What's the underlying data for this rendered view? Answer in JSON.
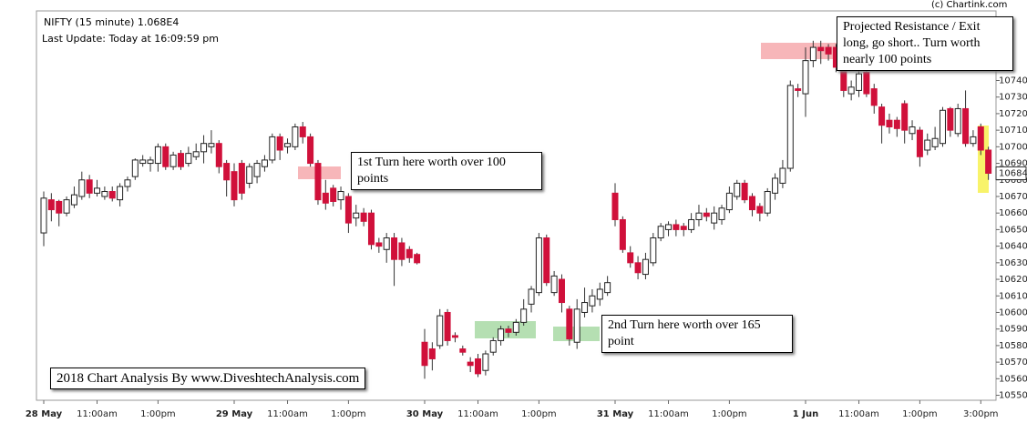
{
  "chart_data": {
    "type": "candlestick",
    "title": "NIFTY (15 minute) 1.068E4",
    "subtitle": "Last Update: Today at 16:09:59 pm",
    "credit": "(c) Chartink.com",
    "watermark": "2018 Chart Analysis By www.DiveshtechAnalysis.com",
    "annotations": [
      "1st Turn here worth over 100 points",
      "2nd Turn here worth over 165 point",
      "Projected Resistance / Exit long, go short.. Turn worth nearly 100 points"
    ],
    "up_color": "#ffffff",
    "down_color": "#d0103a",
    "open": [
      10648,
      10668,
      10667,
      10660,
      10665,
      10670,
      10680,
      10672,
      10670,
      10673,
      10668,
      10676,
      10682,
      10690,
      10690,
      10690,
      10700,
      10688,
      10696,
      10690,
      10694,
      10697,
      10700,
      10702,
      10690,
      10685,
      10690,
      10678,
      10682,
      10688,
      10692,
      10706,
      10700,
      10700,
      10712,
      10706,
      10690,
      10672,
      10675,
      10668,
      10670,
      10657,
      10660,
      10660,
      10642,
      10638,
      10645,
      10642,
      10638,
      10635,
      10582,
      10578,
      10580,
      10600,
      10586,
      10578,
      10570,
      10572,
      10565,
      10576,
      10583,
      10590,
      10588,
      10594,
      10605,
      10612,
      10645,
      10612,
      10620,
      10602,
      10582,
      10600,
      10604,
      10608,
      10612,
      10672,
      10656,
      10636,
      10630,
      10623,
      10630,
      10645,
      10650,
      10653,
      10652,
      10650,
      10656,
      10660,
      10654,
      10656,
      10662,
      10670,
      10678,
      10670,
      10664,
      10660,
      10672,
      10678,
      10687,
      10735,
      10732,
      10752,
      10760,
      10760,
      10760,
      10748,
      10732,
      10734,
      10745,
      10735,
      10724,
      10716,
      10716,
      10726,
      10708,
      10710,
      10698,
      10700,
      10702,
      10723,
      10708,
      10723,
      10702,
      10712,
      10698
    ],
    "high": [
      10673,
      10672,
      10668,
      10670,
      10676,
      10685,
      10683,
      10680,
      10676,
      10676,
      10678,
      10682,
      10693,
      10695,
      10694,
      10702,
      10702,
      10697,
      10698,
      10700,
      10702,
      10707,
      10710,
      10704,
      10692,
      10690,
      10692,
      10690,
      10692,
      10695,
      10708,
      10708,
      10705,
      10714,
      10715,
      10708,
      10692,
      10680,
      10677,
      10676,
      10672,
      10665,
      10663,
      10662,
      10645,
      10648,
      10648,
      10645,
      10640,
      10636,
      10590,
      10582,
      10602,
      10602,
      10588,
      10580,
      10573,
      10575,
      10577,
      10585,
      10592,
      10592,
      10596,
      10608,
      10616,
      10648,
      10647,
      10625,
      10623,
      10604,
      10608,
      10615,
      10614,
      10618,
      10622,
      10678,
      10658,
      10640,
      10634,
      10636,
      10648,
      10654,
      10655,
      10656,
      10654,
      10660,
      10665,
      10663,
      10664,
      10665,
      10676,
      10680,
      10680,
      10672,
      10666,
      10675,
      10684,
      10692,
      10740,
      10738,
      10760,
      10764,
      10764,
      10762,
      10762,
      10750,
      10740,
      10748,
      10747,
      10738,
      10726,
      10720,
      10718,
      10728,
      10716,
      10712,
      10708,
      10712,
      10724,
      10724,
      10726,
      10734,
      10710,
      10714,
      10700
    ],
    "low": [
      10640,
      10655,
      10652,
      10658,
      10663,
      10668,
      10669,
      10670,
      10668,
      10667,
      10664,
      10673,
      10680,
      10688,
      10685,
      10685,
      10686,
      10686,
      10686,
      10688,
      10692,
      10690,
      10696,
      10684,
      10670,
      10664,
      10668,
      10675,
      10678,
      10685,
      10690,
      10692,
      10696,
      10698,
      10702,
      10688,
      10665,
      10662,
      10664,
      10662,
      10648,
      10652,
      10652,
      10638,
      10636,
      10630,
      10616,
      10628,
      10630,
      10629,
      10560,
      10565,
      10578,
      10580,
      10582,
      10574,
      10564,
      10561,
      10562,
      10574,
      10580,
      10585,
      10586,
      10592,
      10600,
      10610,
      10616,
      10610,
      10600,
      10580,
      10578,
      10597,
      10600,
      10604,
      10610,
      10652,
      10636,
      10627,
      10620,
      10620,
      10628,
      10643,
      10646,
      10646,
      10646,
      10648,
      10652,
      10655,
      10650,
      10653,
      10660,
      10668,
      10666,
      10658,
      10655,
      10658,
      10668,
      10675,
      10685,
      10730,
      10718,
      10748,
      10750,
      10752,
      10745,
      10730,
      10728,
      10730,
      10730,
      10720,
      10702,
      10708,
      10706,
      10702,
      10704,
      10688,
      10695,
      10698,
      10700,
      10706,
      10706,
      10700,
      10700,
      10695,
      10680
    ],
    "close": [
      10669,
      10662,
      10660,
      10668,
      10671,
      10680,
      10672,
      10675,
      10673,
      10669,
      10676,
      10680,
      10692,
      10692,
      10692,
      10700,
      10688,
      10695,
      10688,
      10696,
      10697,
      10702,
      10702,
      10688,
      10680,
      10668,
      10672,
      10688,
      10690,
      10692,
      10706,
      10698,
      10702,
      10712,
      10706,
      10690,
      10668,
      10666,
      10667,
      10673,
      10654,
      10660,
      10655,
      10641,
      10640,
      10645,
      10632,
      10632,
      10633,
      10630,
      10568,
      10572,
      10598,
      10583,
      10585,
      10576,
      10568,
      10563,
      10575,
      10583,
      10590,
      10588,
      10594,
      10602,
      10614,
      10645,
      10618,
      10622,
      10606,
      10584,
      10602,
      10606,
      10610,
      10614,
      10618,
      10656,
      10638,
      10630,
      10624,
      10632,
      10645,
      10652,
      10653,
      10650,
      10650,
      10656,
      10660,
      10658,
      10660,
      10663,
      10672,
      10678,
      10668,
      10662,
      10660,
      10673,
      10681,
      10687,
      10737,
      10734,
      10752,
      10760,
      10758,
      10756,
      10748,
      10734,
      10736,
      10744,
      10732,
      10725,
      10713,
      10712,
      10711,
      10710,
      10712,
      10694,
      10704,
      10705,
      10722,
      10710,
      10723,
      10702,
      10706,
      10698,
      10684
    ],
    "last_price": 10684,
    "ylim": [
      10547,
      10782
    ],
    "yticks": [
      10550,
      10560,
      10570,
      10580,
      10590,
      10600,
      10610,
      10620,
      10630,
      10640,
      10650,
      10660,
      10670,
      10680,
      10690,
      10700,
      10710,
      10720,
      10730,
      10740
    ],
    "xticks": [
      {
        "value": 0,
        "label": "28 May"
      },
      {
        "value": 7,
        "label": "11:00am"
      },
      {
        "value": 15,
        "label": "1:00pm"
      },
      {
        "value": 25,
        "label": "29 May"
      },
      {
        "value": 32,
        "label": "11:00am"
      },
      {
        "value": 40,
        "label": "1:00pm"
      },
      {
        "value": 50,
        "label": "30 May"
      },
      {
        "value": 57,
        "label": "11:00am"
      },
      {
        "value": 65,
        "label": "1:00pm"
      },
      {
        "value": 75,
        "label": "31 May"
      },
      {
        "value": 82,
        "label": "11:00am"
      },
      {
        "value": 90,
        "label": "1:00pm"
      },
      {
        "value": 100,
        "label": "1 Jun"
      },
      {
        "value": 107,
        "label": "11:00am"
      },
      {
        "value": 115,
        "label": "1:00pm"
      },
      {
        "value": 123,
        "label": "3:00pm"
      }
    ]
  }
}
